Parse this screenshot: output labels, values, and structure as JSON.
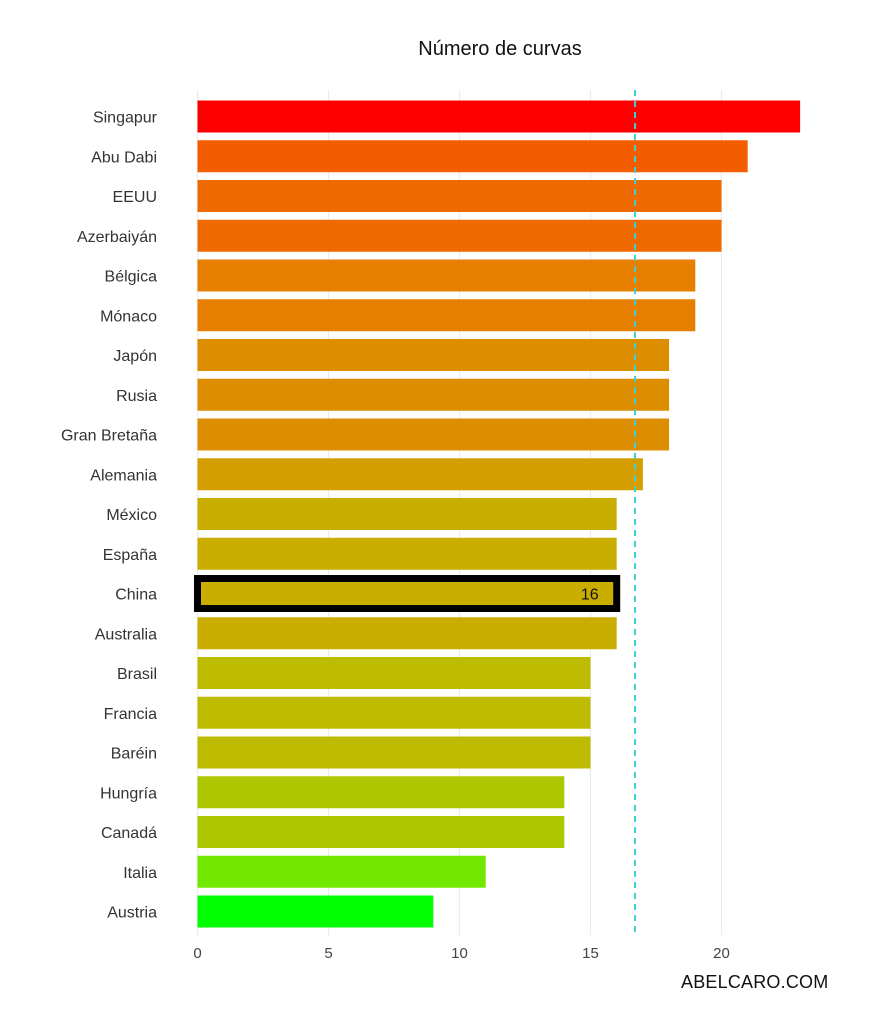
{
  "chart_data": {
    "type": "bar",
    "orientation": "horizontal",
    "title": "Número de curvas",
    "xlabel": "",
    "ylabel": "",
    "categories": [
      "Singapur",
      "Abu Dabi",
      "EEUU",
      "Azerbaiyán",
      "Bélgica",
      "Mónaco",
      "Japón",
      "Rusia",
      "Gran Bretaña",
      "Alemania",
      "México",
      "España",
      "China",
      "Australia",
      "Brasil",
      "Francia",
      "Baréin",
      "Hungría",
      "Canadá",
      "Italia",
      "Austria"
    ],
    "values": [
      23,
      21,
      20,
      20,
      19,
      19,
      18,
      18,
      18,
      17,
      16,
      16,
      16,
      16,
      15,
      15,
      15,
      14,
      14,
      11,
      9
    ],
    "colors": [
      "#ff0000",
      "#f45c00",
      "#ee6a00",
      "#ee6a00",
      "#e67e00",
      "#e67e00",
      "#dc8d00",
      "#dc8d00",
      "#dc8d00",
      "#d59e00",
      "#c9ae00",
      "#c9ae00",
      "#c9ae00",
      "#c9ae00",
      "#bdbc00",
      "#bdbc00",
      "#bdbc00",
      "#adc700",
      "#adc700",
      "#72e800",
      "#00ff00"
    ],
    "xlim": [
      0,
      23.4
    ],
    "xticks": [
      0,
      5,
      10,
      15,
      20
    ],
    "reference_line": {
      "value": 16.7,
      "color": "#40d0d0",
      "style": "dashed"
    },
    "highlight": {
      "category": "China",
      "label": "16"
    },
    "grid": "vertical"
  },
  "watermark": "ABELCARO.COM"
}
